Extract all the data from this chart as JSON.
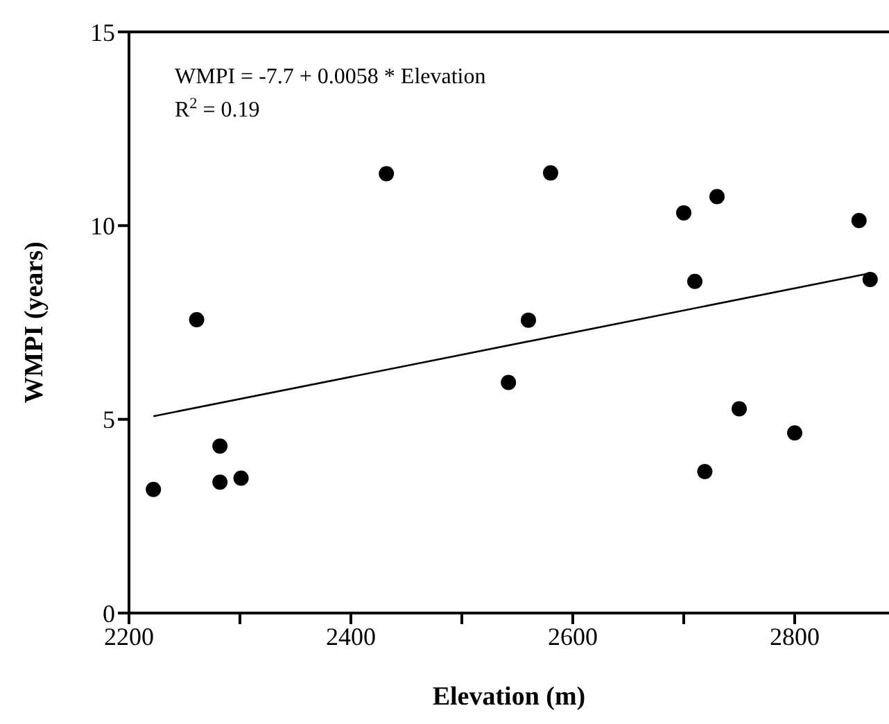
{
  "chart_data": {
    "type": "scatter",
    "xlabel": "Elevation (m)",
    "ylabel": "WMPI (years)",
    "annotations": [
      "WMPI = -7.7 + 0.0058 * Elevation",
      "R$^{2}$ = 0.19"
    ],
    "xlim": [
      2200,
      2885
    ],
    "xticks": [
      2200,
      {
        "value": 2300,
        "label": null
      },
      2400,
      {
        "value": 2500,
        "label": null
      },
      2600,
      {
        "value": 2700,
        "label": null
      },
      2800
    ],
    "ylim": [
      0,
      15
    ],
    "yticks": [
      0,
      5,
      10,
      15
    ],
    "grid": false,
    "legend": false,
    "series": [
      {
        "type": "scatter",
        "color": "#000000",
        "marker": "circle",
        "x": [
          2222,
          2261,
          2282,
          2282,
          2301,
          2432,
          2542,
          2580,
          2560,
          2700,
          2730,
          2710,
          2750,
          2719,
          2800,
          2858,
          2868
        ],
        "values": [
          3.19,
          7.57,
          4.31,
          3.38,
          3.48,
          11.34,
          5.95,
          11.36,
          7.56,
          10.33,
          10.75,
          8.56,
          5.27,
          3.65,
          4.65,
          10.13,
          8.61
        ]
      },
      {
        "type": "line",
        "color": "#000000",
        "marker": "none",
        "x": [
          2222,
          2868
        ],
        "values": [
          5.08,
          8.77
        ]
      }
    ]
  }
}
